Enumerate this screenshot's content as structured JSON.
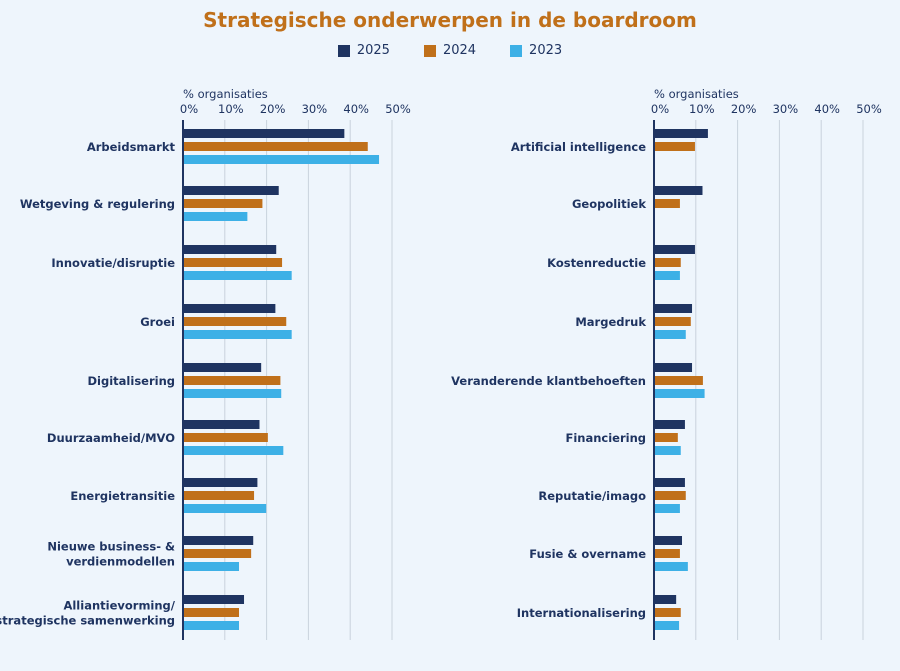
{
  "title": "Strategische onderwerpen in de boardroom",
  "colors": {
    "2025": "#1f3461",
    "2024": "#c0701a",
    "2023": "#3db0e6",
    "title": "#c0701a"
  },
  "legend": [
    "2025",
    "2024",
    "2023"
  ],
  "chart_data": [
    {
      "type": "bar",
      "orientation": "horizontal",
      "xlabel": "% organisaties",
      "xlim": [
        0,
        50
      ],
      "xticks": [
        "0%",
        "10%",
        "20%",
        "30%",
        "40%",
        "50%"
      ],
      "grid": true,
      "categories": [
        [
          "Arbeidsmarkt"
        ],
        [
          "Wetgeving & regulering"
        ],
        [
          "Innovatie/disruptie"
        ],
        [
          "Groei"
        ],
        [
          "Digitalisering"
        ],
        [
          "Duurzaamheid/MVO"
        ],
        [
          "Energietransitie"
        ],
        [
          "Nieuwe business- &",
          "verdienmodellen"
        ],
        [
          "Alliantievorming/",
          "strategische samenwerking"
        ]
      ],
      "series": [
        {
          "name": "2025",
          "values": [
            38.6,
            22.9,
            22.3,
            22.1,
            18.7,
            18.3,
            17.8,
            16.8,
            14.6
          ]
        },
        {
          "name": "2024",
          "values": [
            44.2,
            19.0,
            23.7,
            24.7,
            23.3,
            20.3,
            17.0,
            16.3,
            13.4
          ]
        },
        {
          "name": "2023",
          "values": [
            46.9,
            15.4,
            26.0,
            26.0,
            23.5,
            24.0,
            19.9,
            13.4,
            13.4
          ]
        }
      ]
    },
    {
      "type": "bar",
      "orientation": "horizontal",
      "xlabel": "% organisaties",
      "xlim": [
        0,
        50
      ],
      "xticks": [
        "0%",
        "10%",
        "20%",
        "30%",
        "40%",
        "50%"
      ],
      "grid": true,
      "categories": [
        [
          "Artificial intelligence"
        ],
        [
          "Geopolitiek"
        ],
        [
          "Kostenreductie"
        ],
        [
          "Margedruk"
        ],
        [
          "Veranderende klantbehoeften"
        ],
        [
          "Financiering"
        ],
        [
          "Reputatie/imago"
        ],
        [
          "Fusie & overname"
        ],
        [
          "Internationalisering"
        ]
      ],
      "series": [
        {
          "name": "2025",
          "values": [
            12.9,
            11.6,
            9.8,
            9.1,
            9.1,
            7.4,
            7.4,
            6.7,
            5.3
          ]
        },
        {
          "name": "2024",
          "values": [
            9.8,
            6.2,
            6.4,
            8.8,
            11.7,
            5.7,
            7.6,
            6.2,
            6.4
          ]
        },
        {
          "name": "2023",
          "values": [
            null,
            null,
            6.2,
            7.6,
            12.1,
            6.4,
            6.2,
            8.1,
            6.0
          ]
        }
      ]
    }
  ]
}
